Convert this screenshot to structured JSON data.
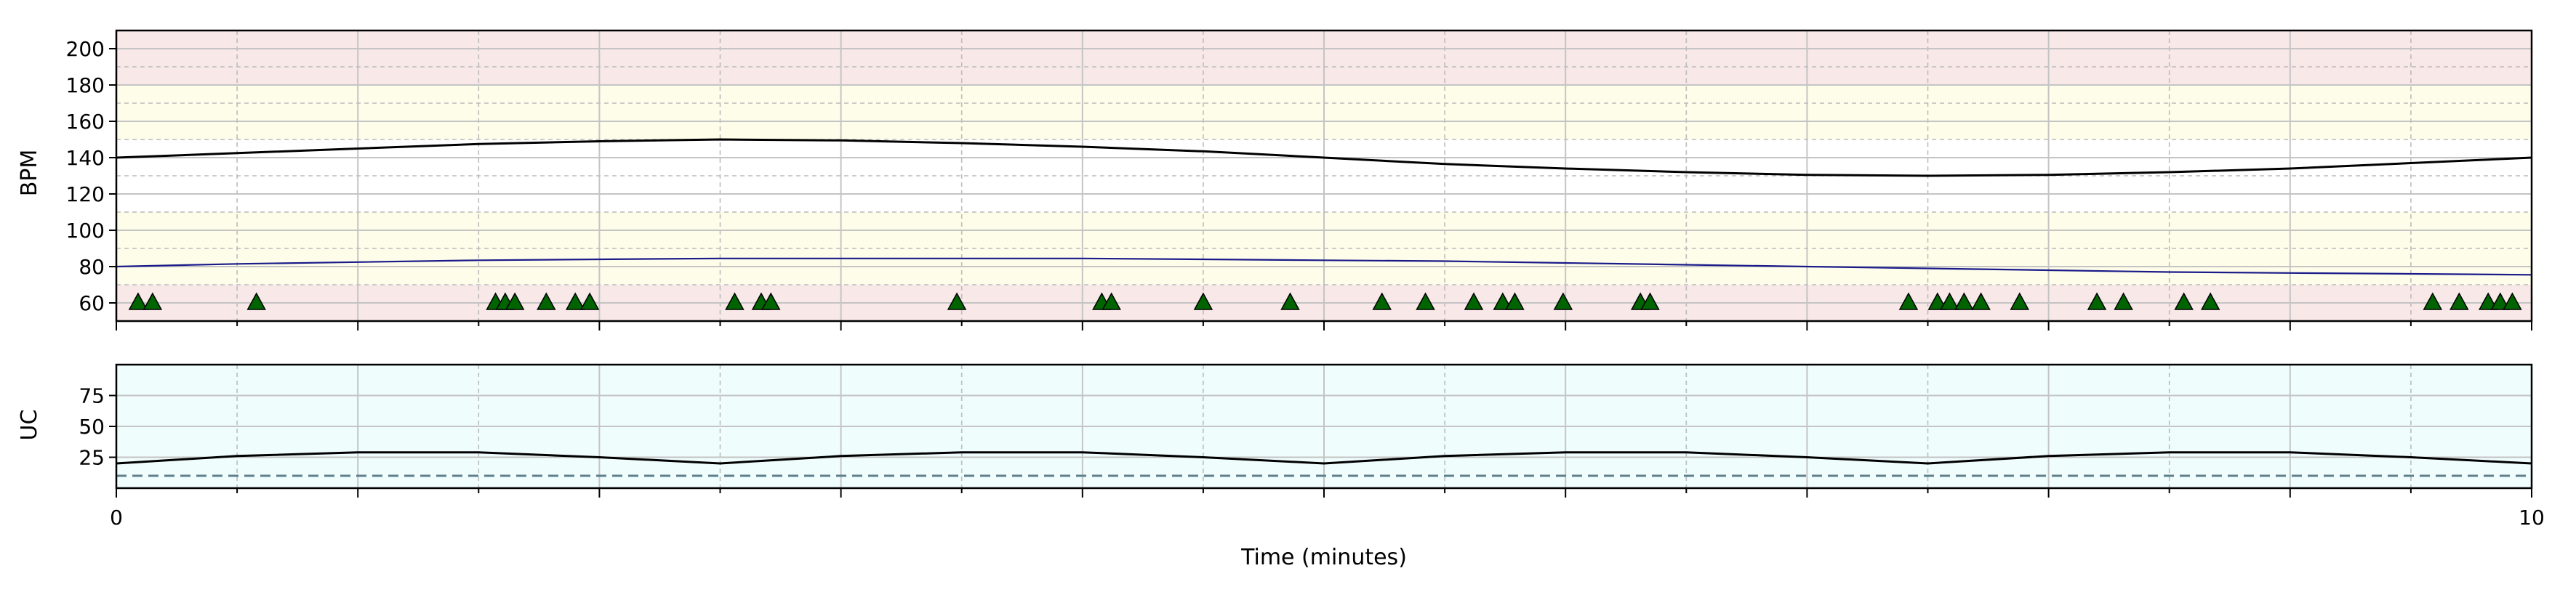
{
  "chart_data": [
    {
      "type": "line",
      "panel": "fetal-heart-rate",
      "ylabel": "BPM",
      "xlim": [
        0,
        10
      ],
      "ylim": [
        50,
        210
      ],
      "yticks": [
        60,
        80,
        100,
        120,
        140,
        160,
        180,
        200
      ],
      "yticks_minor": [
        70,
        90,
        110,
        130,
        150,
        170,
        190
      ],
      "grid": true,
      "bands": [
        {
          "from": 50,
          "to": 70,
          "color": "#f8e8e8"
        },
        {
          "from": 70,
          "to": 100,
          "color": "#fefde9"
        },
        {
          "from": 100,
          "to": 110,
          "color": "#fefde9"
        },
        {
          "from": 110,
          "to": 150,
          "color": "#ffffff"
        },
        {
          "from": 150,
          "to": 180,
          "color": "#fefde9"
        },
        {
          "from": 180,
          "to": 210,
          "color": "#f8e8e8"
        }
      ],
      "series": [
        {
          "color": "#000000",
          "x": [
            0,
            0.5,
            1,
            1.5,
            2,
            2.5,
            3,
            3.5,
            4,
            4.5,
            5,
            5.5,
            6,
            6.5,
            7,
            7.5,
            8,
            8.5,
            9,
            9.5,
            10
          ],
          "y": [
            140,
            142.5,
            145,
            147.5,
            149,
            150,
            149.5,
            148,
            146,
            143.5,
            140,
            136.5,
            134,
            132,
            130.5,
            130,
            130.5,
            132,
            134,
            137,
            140
          ]
        },
        {
          "color": "#1a1a8a",
          "x": [
            0,
            0.5,
            1,
            1.5,
            2,
            2.5,
            3,
            3.5,
            4,
            4.5,
            5,
            5.5,
            6,
            6.5,
            7,
            7.5,
            8,
            8.5,
            9,
            9.5,
            10
          ],
          "y": [
            80,
            81.5,
            82.5,
            83.5,
            84,
            84.5,
            84.5,
            84.5,
            84.5,
            84,
            83.5,
            83,
            82,
            81,
            80,
            79,
            78,
            77,
            76.5,
            76,
            75.5
          ]
        }
      ],
      "markers": {
        "shape": "triangle-up",
        "color": "#006400",
        "y": 60,
        "x": [
          0.09,
          0.15,
          0.58,
          1.57,
          1.61,
          1.65,
          1.78,
          1.9,
          1.96,
          2.56,
          2.67,
          2.71,
          3.48,
          4.08,
          4.12,
          4.5,
          4.86,
          5.24,
          5.42,
          5.62,
          5.74,
          5.79,
          5.99,
          6.31,
          6.35,
          7.42,
          7.54,
          7.59,
          7.65,
          7.72,
          7.88,
          8.2,
          8.31,
          8.56,
          8.67,
          9.59,
          9.7,
          9.82,
          9.87,
          9.92
        ]
      }
    },
    {
      "type": "line",
      "panel": "uterine-contractions",
      "ylabel": "UC",
      "xlabel": "Time (minutes)",
      "xlim": [
        0,
        10
      ],
      "ylim": [
        0,
        100
      ],
      "yticks": [
        25,
        50,
        75
      ],
      "xticks": [
        0,
        10
      ],
      "xtick_positions": [
        0,
        1,
        2,
        3,
        4,
        5,
        6,
        7,
        8,
        9,
        10
      ],
      "grid": true,
      "background": "#f0fdfd",
      "series": [
        {
          "color": "#000000",
          "x": [
            0,
            0.5,
            1,
            1.5,
            2,
            2.5,
            3,
            3.5,
            4,
            4.5,
            5,
            5.5,
            6,
            6.5,
            7,
            7.5,
            8,
            8.5,
            9,
            9.5,
            10
          ],
          "y": [
            20,
            26,
            29,
            29,
            25,
            20,
            26,
            29,
            29,
            25,
            20,
            26,
            29,
            29,
            25,
            20,
            26,
            29,
            29,
            25,
            20
          ]
        }
      ],
      "baseline": {
        "y": 10,
        "color": "#5f7f8a",
        "style": "dashed"
      }
    }
  ]
}
